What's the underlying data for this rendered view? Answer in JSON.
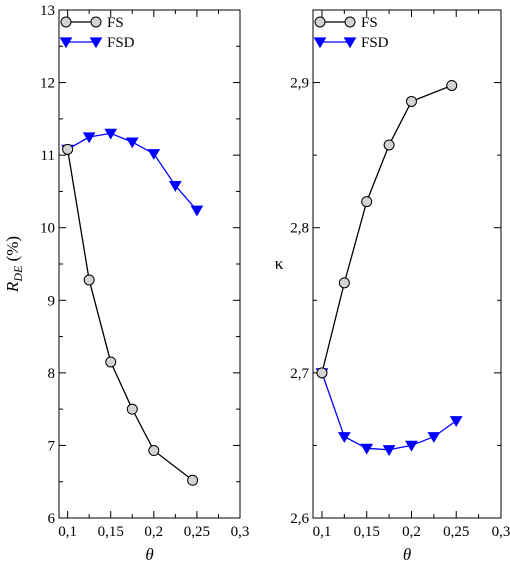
{
  "chart_data": [
    {
      "type": "line",
      "panel": "left",
      "xlabel": "θ",
      "ylabel_main": "R",
      "ylabel_sub": "DE",
      "ylabel_unit": " (%)",
      "xlim": [
        0.09,
        0.3
      ],
      "ylim": [
        6,
        13
      ],
      "x_ticks": [
        0.1,
        0.15,
        0.2,
        0.25,
        0.3
      ],
      "x_tick_labels": [
        "0,1",
        "0,15",
        "0,2",
        "0,25",
        "0,3"
      ],
      "y_ticks": [
        6,
        7,
        8,
        9,
        10,
        11,
        12,
        13
      ],
      "y_tick_labels": [
        "6",
        "7",
        "8",
        "9",
        "10",
        "11",
        "12",
        "13"
      ],
      "grid": false,
      "legend_position": "top-left",
      "series": [
        {
          "name": "FS",
          "color": "#000000",
          "marker": "circle",
          "marker_fill": "#d3d3d3",
          "x": [
            0.1,
            0.125,
            0.15,
            0.175,
            0.2,
            0.245
          ],
          "y": [
            11.08,
            9.28,
            8.15,
            7.5,
            6.93,
            6.52
          ]
        },
        {
          "name": "FSD",
          "color": "#0000ff",
          "marker": "triangle-down",
          "marker_fill": "#0000ff",
          "x": [
            0.1,
            0.125,
            0.15,
            0.175,
            0.2,
            0.225,
            0.25
          ],
          "y": [
            11.08,
            11.25,
            11.3,
            11.18,
            11.02,
            10.58,
            10.24
          ]
        }
      ]
    },
    {
      "type": "line",
      "panel": "right",
      "xlabel": "θ",
      "ylabel": "κ",
      "xlim": [
        0.09,
        0.3
      ],
      "ylim": [
        2.6,
        2.95
      ],
      "x_ticks": [
        0.1,
        0.15,
        0.2,
        0.25,
        0.3
      ],
      "x_tick_labels": [
        "0,1",
        "0,15",
        "0,2",
        "0,25",
        "0,3"
      ],
      "y_ticks": [
        2.6,
        2.7,
        2.8,
        2.9
      ],
      "y_tick_labels": [
        "2,6",
        "2,7",
        "2,8",
        "2,9"
      ],
      "grid": false,
      "legend_position": "top-left",
      "series": [
        {
          "name": "FS",
          "color": "#000000",
          "marker": "circle",
          "marker_fill": "#d3d3d3",
          "x": [
            0.1,
            0.125,
            0.15,
            0.175,
            0.2,
            0.245
          ],
          "y": [
            2.7,
            2.762,
            2.818,
            2.857,
            2.887,
            2.898
          ]
        },
        {
          "name": "FSD",
          "color": "#0000ff",
          "marker": "triangle-down",
          "marker_fill": "#0000ff",
          "x": [
            0.1,
            0.125,
            0.15,
            0.175,
            0.2,
            0.225,
            0.25
          ],
          "y": [
            2.7,
            2.656,
            2.648,
            2.647,
            2.65,
            2.656,
            2.667
          ]
        }
      ]
    }
  ]
}
